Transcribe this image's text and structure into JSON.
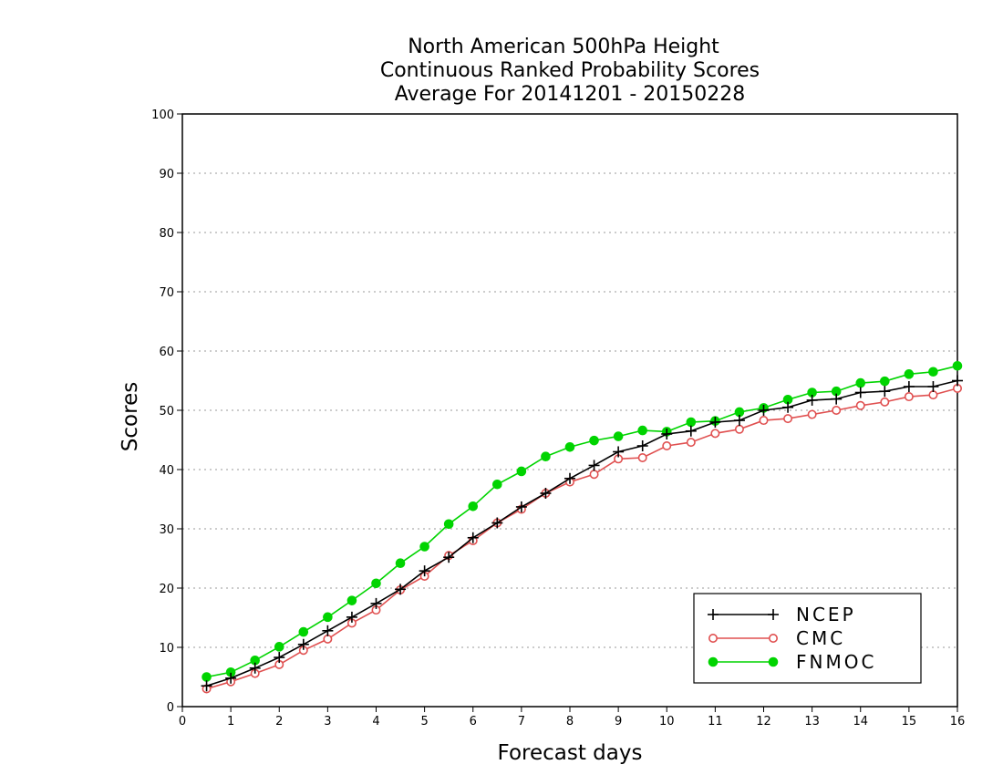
{
  "chart_data": {
    "type": "line",
    "title_lines": [
      "North American 500hPa Height",
      "Continuous Ranked Probability Scores",
      "Average For 20141201 - 20150228"
    ],
    "xlabel": "Forecast days",
    "ylabel": "Scores",
    "xlim": [
      0,
      16
    ],
    "ylim": [
      0,
      100
    ],
    "xticks": [
      "0",
      "1",
      "2",
      "3",
      "4",
      "5",
      "6",
      "7",
      "8",
      "9",
      "10",
      "11",
      "12",
      "13",
      "14",
      "15",
      "16"
    ],
    "yticks": [
      "0",
      "10",
      "20",
      "30",
      "40",
      "50",
      "60",
      "70",
      "80",
      "90",
      "100"
    ],
    "grid": "horizontal dotted",
    "legend_position": "bottom-right",
    "x": [
      0.5,
      1,
      1.5,
      2,
      2.5,
      3,
      3.5,
      4,
      4.5,
      5,
      5.5,
      6,
      6.5,
      7,
      7.5,
      8,
      8.5,
      9,
      9.5,
      10,
      10.5,
      11,
      11.5,
      12,
      12.5,
      13,
      13.5,
      14,
      14.5,
      15,
      15.5,
      16
    ],
    "series": [
      {
        "name": "NCEP",
        "color": "#000000",
        "marker": "plus",
        "values": [
          3.5,
          4.8,
          6.5,
          8.3,
          10.5,
          12.8,
          15.1,
          17.4,
          19.8,
          22.9,
          25.2,
          28.5,
          31.0,
          33.7,
          36.0,
          38.5,
          40.7,
          43.0,
          44.0,
          46.0,
          46.5,
          48.0,
          48.3,
          50.0,
          50.5,
          51.7,
          51.9,
          53.0,
          53.2,
          54.0,
          54.0,
          55.0
        ],
        "shape": "cross"
      },
      {
        "name": "CMC",
        "color": "#e05050",
        "marker": "open-circle",
        "values": [
          3.0,
          4.2,
          5.6,
          7.1,
          9.5,
          11.4,
          14.1,
          16.3,
          19.7,
          22.0,
          25.5,
          28.0,
          31.0,
          33.3,
          36.0,
          37.9,
          39.2,
          41.8,
          42.0,
          44.0,
          44.6,
          46.1,
          46.8,
          48.3,
          48.6,
          49.3,
          50.0,
          50.8,
          51.4,
          52.3,
          52.6,
          53.7
        ],
        "shape": "circle-open"
      },
      {
        "name": "FNMOC",
        "color": "#00d400",
        "marker": "filled-circle",
        "values": [
          5.0,
          5.8,
          7.8,
          10.1,
          12.6,
          15.1,
          17.9,
          20.8,
          24.2,
          27.0,
          30.8,
          33.8,
          37.5,
          39.7,
          42.2,
          43.8,
          44.9,
          45.6,
          46.6,
          46.4,
          48.0,
          48.2,
          49.7,
          50.4,
          51.8,
          53.0,
          53.2,
          54.6,
          54.9,
          56.1,
          56.5,
          57.5
        ],
        "shape": "circle-filled"
      }
    ]
  }
}
